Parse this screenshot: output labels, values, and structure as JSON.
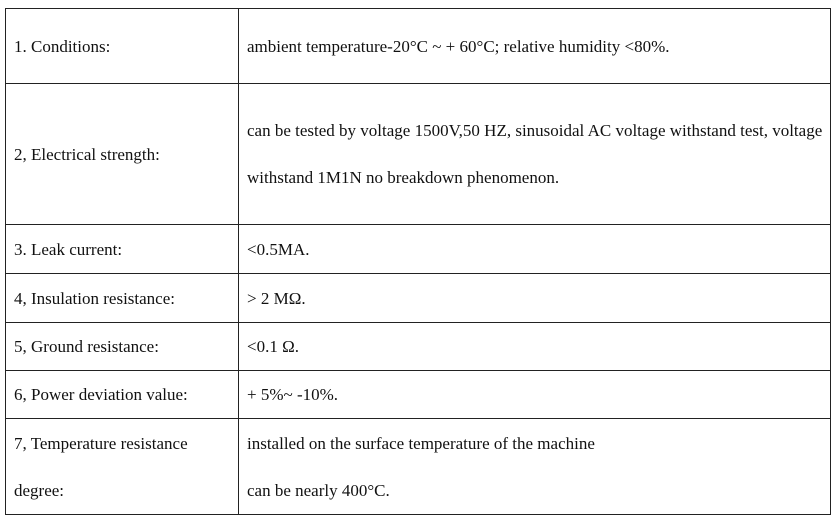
{
  "table": {
    "rows": [
      [
        "1. Conditions:",
        "ambient temperature-20°C ~ + 60°C; relative humidity <80%."
      ],
      [
        "2, Electrical strength:",
        "can be tested by voltage 1500V,50 HZ, sinusoidal AC voltage withstand test, voltage withstand 1M1N no breakdown phenomenon."
      ],
      [
        "3. Leak current:",
        "<0.5MA."
      ],
      [
        "4, Insulation resistance:",
        "> 2 MΩ."
      ],
      [
        "5, Ground resistance:",
        "<0.1 Ω."
      ],
      [
        "6, Power deviation value:",
        "+ 5%~ -10%."
      ],
      [
        "7, Temperature resistance degree:",
        [
          "installed on the surface temperature of the machine",
          "can be nearly 400°C."
        ]
      ]
    ]
  }
}
